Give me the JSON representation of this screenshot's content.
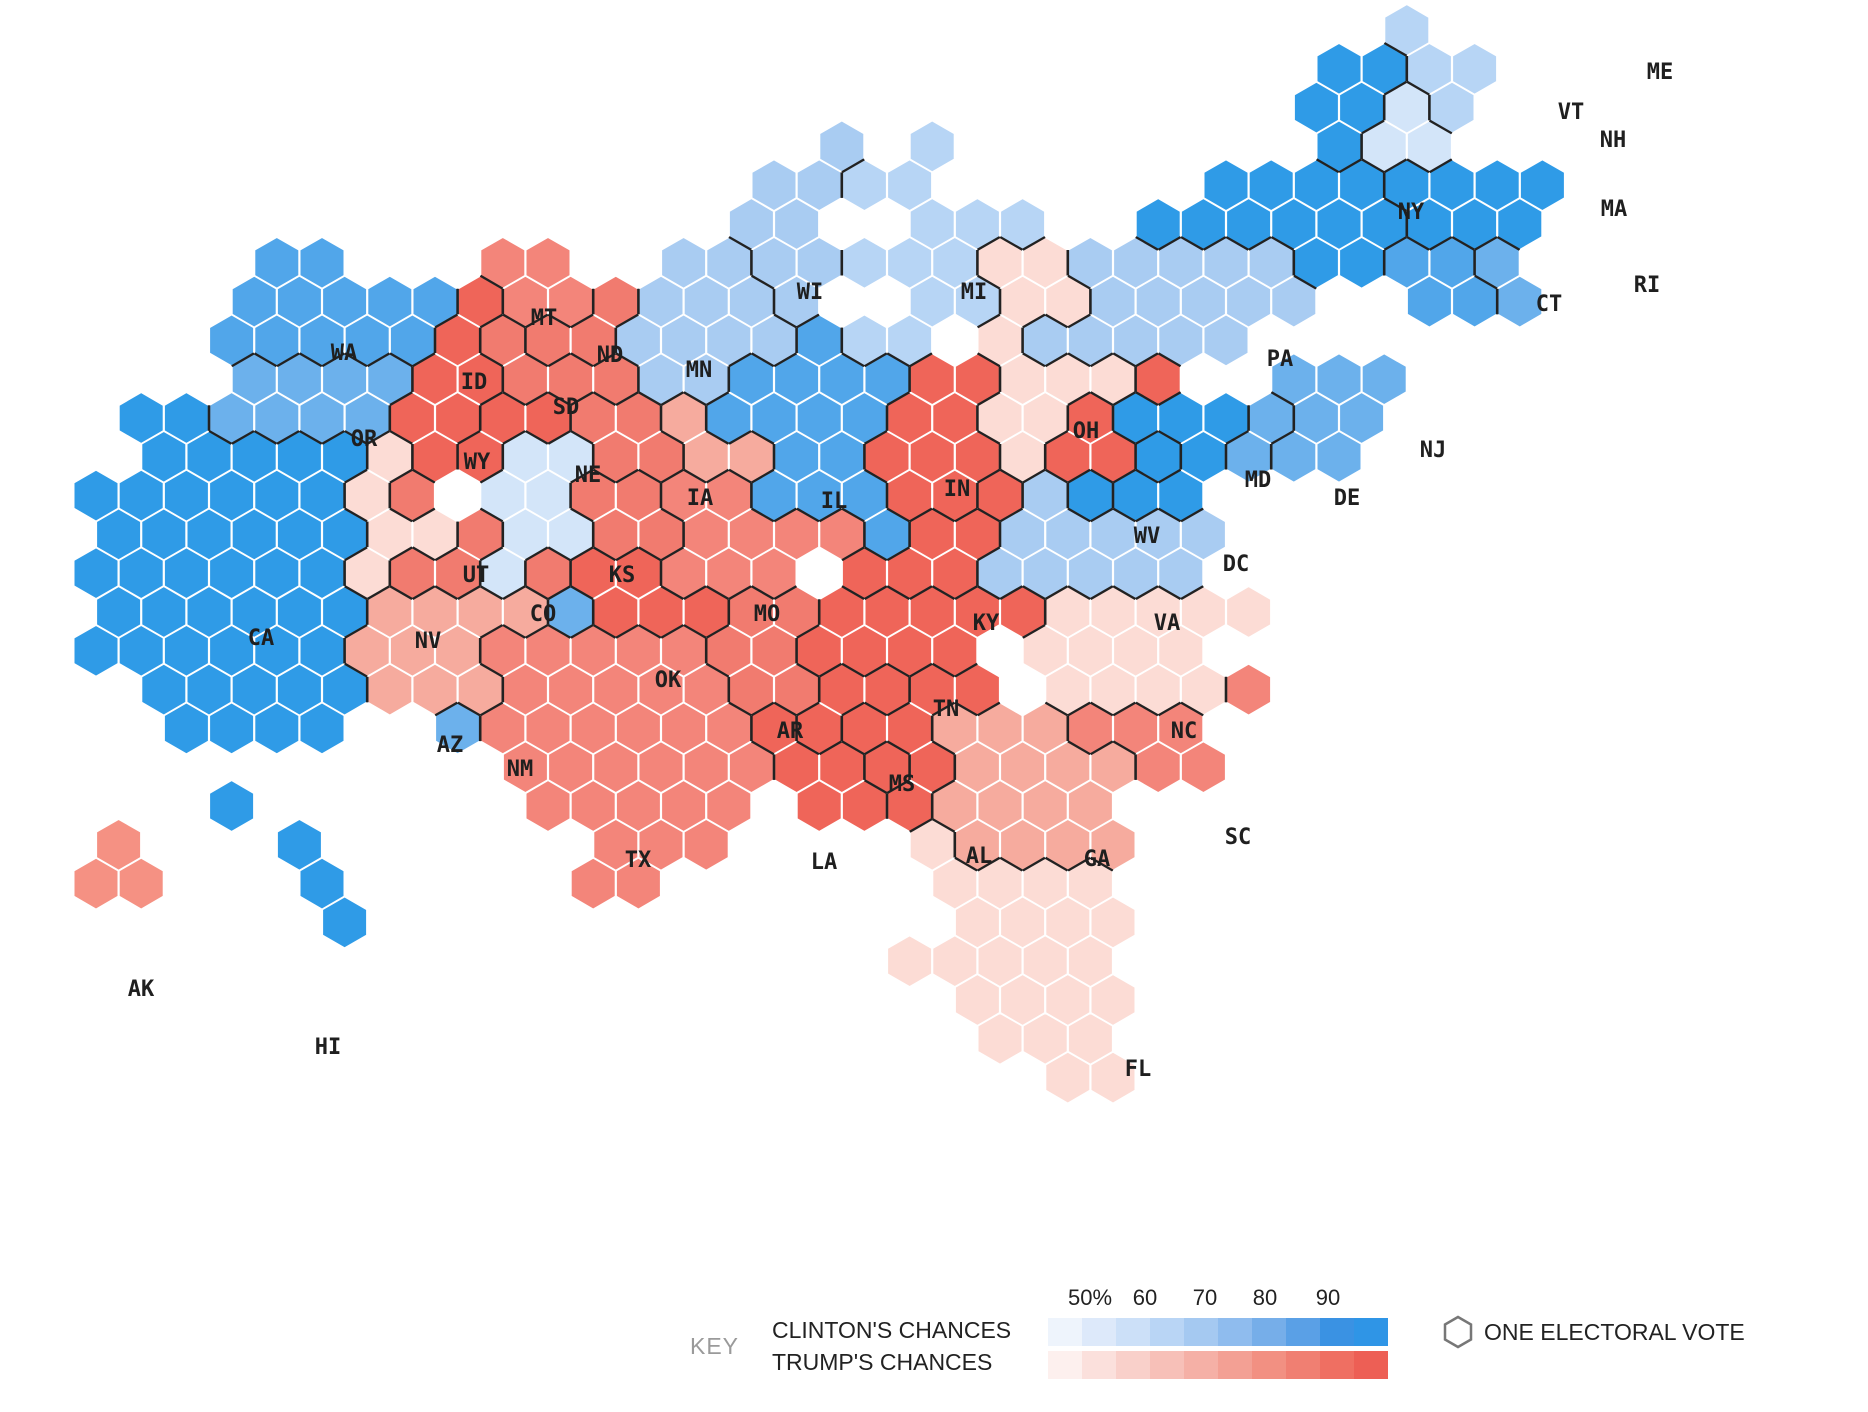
{
  "legend": {
    "key_label": "KEY",
    "clinton_label": "CLINTON'S CHANCES",
    "trump_label": "TRUMP'S CHANCES",
    "scale_labels": [
      "50%",
      "60",
      "70",
      "80",
      "90"
    ],
    "electoral_vote_label": "ONE ELECTORAL VOTE",
    "clinton_colors": [
      "#eef4fc",
      "#dde9fa",
      "#cce0f8",
      "#b9d5f5",
      "#a5c9f1",
      "#8fbcee",
      "#76aee9",
      "#5aa0e6",
      "#3a92e3",
      "#2f95e6"
    ],
    "trump_colors": [
      "#fdf0ee",
      "#fbe0dc",
      "#f9d0ca",
      "#f7c0b8",
      "#f5b0a6",
      "#f3a094",
      "#f29082",
      "#f07f72",
      "#ef6f62",
      "#ed5f55"
    ]
  },
  "palette": {
    "c99": "#2f9be7",
    "c90": "#51a6ea",
    "c80": "#6cb1ec",
    "c70": "#a9ccf2",
    "c60": "#b7d5f5",
    "c55": "#d3e5f9",
    "t55": "#fcdcd5",
    "t60": "#f8c5bb",
    "t70": "#f6ab9e",
    "t80": "#f59183",
    "t85": "#f3857a",
    "t90": "#f17b6f",
    "t95": "#ef6559"
  },
  "states": [
    {
      "abbr": "WA",
      "ev": 12,
      "color": "c90"
    },
    {
      "abbr": "OR",
      "ev": 7,
      "color": "c80"
    },
    {
      "abbr": "CA",
      "ev": 55,
      "color": "c99"
    },
    {
      "abbr": "NV",
      "ev": 6,
      "color": "t55"
    },
    {
      "abbr": "ID",
      "ev": 4,
      "color": "t95"
    },
    {
      "abbr": "MT",
      "ev": 3,
      "color": "t85"
    },
    {
      "abbr": "WY",
      "ev": 3,
      "color": "t95"
    },
    {
      "abbr": "UT",
      "ev": 6,
      "color": "t90"
    },
    {
      "abbr": "AZ",
      "ev": 11,
      "color": "t70"
    },
    {
      "abbr": "CO",
      "ev": 9,
      "color": "c55"
    },
    {
      "abbr": "NM",
      "ev": 5,
      "color": "c80"
    },
    {
      "abbr": "ND",
      "ev": 3,
      "color": "t90"
    },
    {
      "abbr": "SD",
      "ev": 3,
      "color": "t90"
    },
    {
      "abbr": "NE",
      "ev": 5,
      "color": "t90"
    },
    {
      "abbr": "KS",
      "ev": 6,
      "color": "t90"
    },
    {
      "abbr": "OK",
      "ev": 7,
      "color": "t95"
    },
    {
      "abbr": "TX",
      "ev": 38,
      "color": "t85"
    },
    {
      "abbr": "MN",
      "ev": 10,
      "color": "c70"
    },
    {
      "abbr": "IA",
      "ev": 6,
      "color": "t70"
    },
    {
      "abbr": "MO",
      "ev": 10,
      "color": "t85"
    },
    {
      "abbr": "AR",
      "ev": 6,
      "color": "t90"
    },
    {
      "abbr": "LA",
      "ev": 8,
      "color": "t95"
    },
    {
      "abbr": "WI",
      "ev": 10,
      "color": "c70"
    },
    {
      "abbr": "IL",
      "ev": 20,
      "color": "c90"
    },
    {
      "abbr": "MI",
      "ev": 16,
      "color": "c60"
    },
    {
      "abbr": "IN",
      "ev": 11,
      "color": "t95"
    },
    {
      "abbr": "KY",
      "ev": 8,
      "color": "t95"
    },
    {
      "abbr": "TN",
      "ev": 11,
      "color": "t95"
    },
    {
      "abbr": "MS",
      "ev": 6,
      "color": "t95"
    },
    {
      "abbr": "AL",
      "ev": 9,
      "color": "t95"
    },
    {
      "abbr": "OH",
      "ev": 18,
      "color": "t55"
    },
    {
      "abbr": "WV",
      "ev": 5,
      "color": "t95"
    },
    {
      "abbr": "VA",
      "ev": 13,
      "color": "c70"
    },
    {
      "abbr": "NC",
      "ev": 15,
      "color": "t55"
    },
    {
      "abbr": "SC",
      "ev": 9,
      "color": "t85"
    },
    {
      "abbr": "GA",
      "ev": 16,
      "color": "t70"
    },
    {
      "abbr": "FL",
      "ev": 29,
      "color": "t55"
    },
    {
      "abbr": "PA",
      "ev": 20,
      "color": "c70"
    },
    {
      "abbr": "NY",
      "ev": 29,
      "color": "c99"
    },
    {
      "abbr": "NJ",
      "ev": 14,
      "color": "c80"
    },
    {
      "abbr": "DE",
      "ev": 3,
      "color": "c80"
    },
    {
      "abbr": "MD",
      "ev": 10,
      "color": "c99"
    },
    {
      "abbr": "DC",
      "ev": 3,
      "color": "c99"
    },
    {
      "abbr": "CT",
      "ev": 7,
      "color": "c90"
    },
    {
      "abbr": "RI",
      "ev": 4,
      "color": "c80"
    },
    {
      "abbr": "MA",
      "ev": 11,
      "color": "c99"
    },
    {
      "abbr": "VT",
      "ev": 3,
      "color": "c99"
    },
    {
      "abbr": "NH",
      "ev": 4,
      "color": "c55"
    },
    {
      "abbr": "ME",
      "ev": 4,
      "color": "c60"
    },
    {
      "abbr": "AK",
      "ev": 3,
      "color": "t80"
    },
    {
      "abbr": "HI",
      "ev": 4,
      "color": "c99"
    }
  ]
}
